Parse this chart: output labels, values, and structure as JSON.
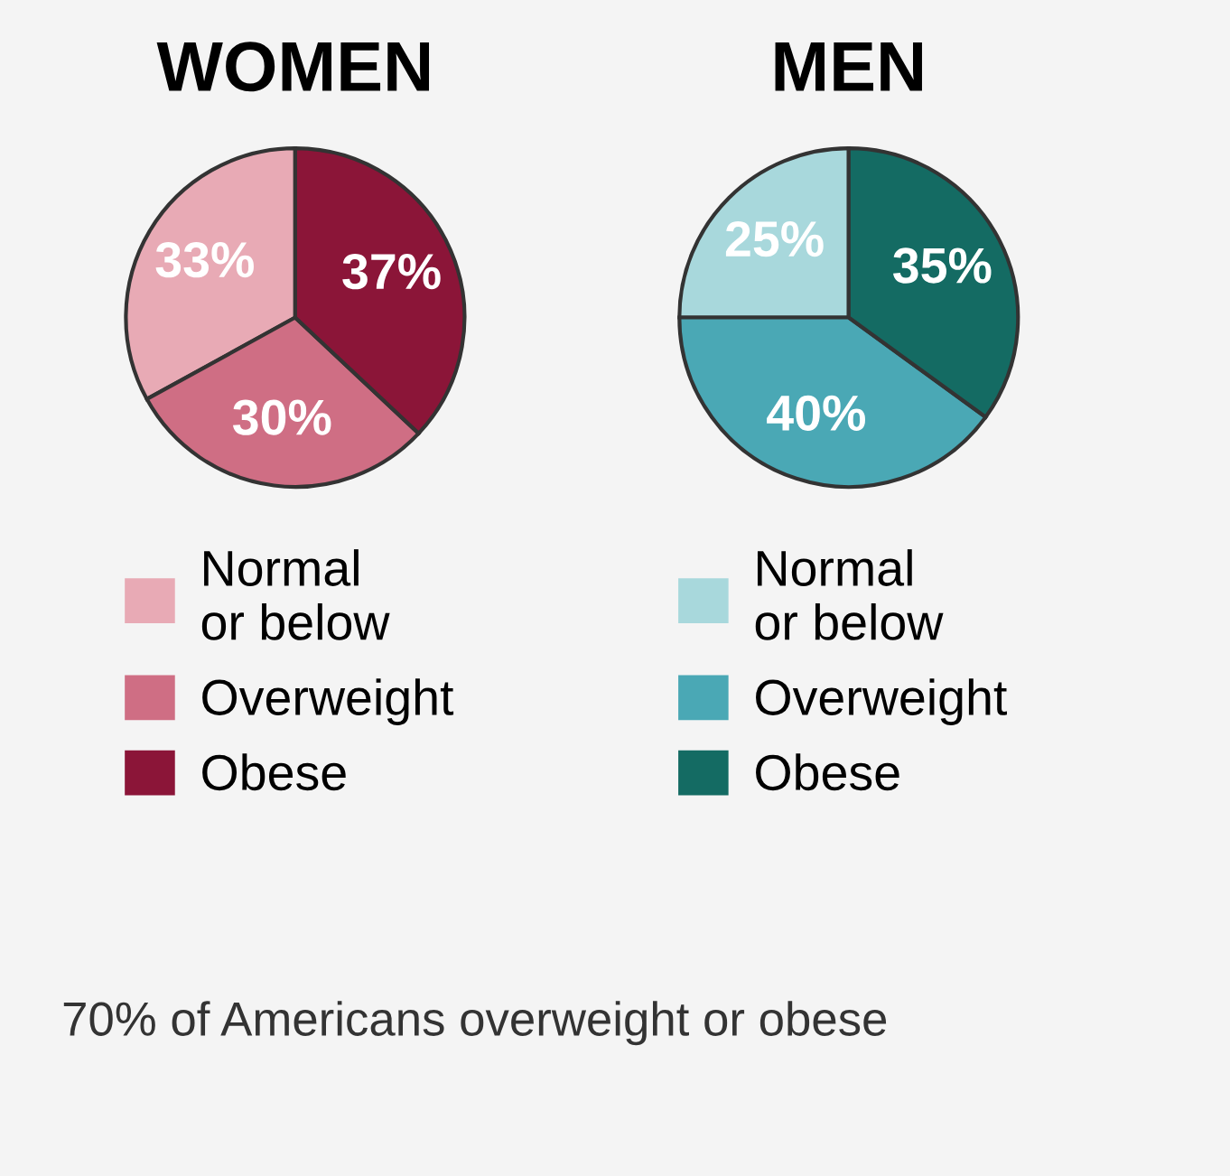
{
  "chart_data": [
    {
      "type": "pie",
      "title": "WOMEN",
      "categories": [
        "Normal\nor below",
        "Overweight",
        "Obese"
      ],
      "values": [
        33,
        30,
        37
      ],
      "value_labels": [
        "33%",
        "30%",
        "37%"
      ],
      "colors": [
        "#e8aab5",
        "#cf6e84",
        "#8b1538"
      ],
      "legend": "bottom"
    },
    {
      "type": "pie",
      "title": "MEN",
      "categories": [
        "Normal\nor below",
        "Overweight",
        "Obese"
      ],
      "values": [
        25,
        40,
        35
      ],
      "value_labels": [
        "25%",
        "40%",
        "35%"
      ],
      "colors": [
        "#a8d8dc",
        "#4aa8b5",
        "#146b63"
      ],
      "legend": "bottom",
      "annotations": [
        "70% of Americans overweight or obese"
      ]
    }
  ]
}
